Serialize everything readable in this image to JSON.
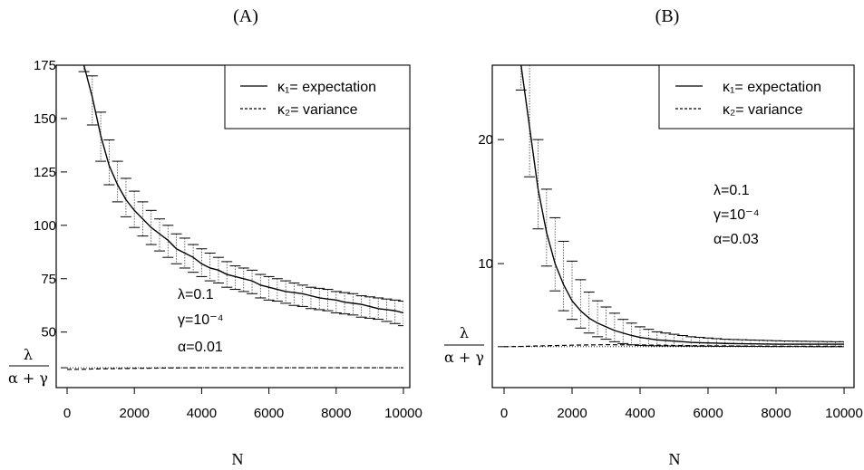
{
  "chart_data": [
    {
      "type": "line",
      "title": "(A)",
      "xlabel": "N",
      "ylabel": "",
      "xlim": [
        0,
        10000
      ],
      "ylim": [
        24,
        175
      ],
      "x_ticks": [
        "0",
        "2000",
        "4000",
        "6000",
        "8000",
        "10000"
      ],
      "y_ticks": [
        "50",
        "75",
        "100",
        "125",
        "150",
        "175"
      ],
      "y_extra_label": {
        "numerator": "λ",
        "denominator": "α + γ",
        "value": 33.3
      },
      "legend": {
        "placement": "top-right",
        "entries": [
          {
            "line": "solid",
            "label": "κ₁= expectation"
          },
          {
            "line": "dashed",
            "label": "κ₂= variance"
          }
        ]
      },
      "annotation": [
        "λ=0.1",
        "γ=10⁻⁴",
        "α=0.01"
      ],
      "series": [
        {
          "name": "κ₁= expectation",
          "line": "solid",
          "x": [
            500,
            750,
            1000,
            1250,
            1500,
            1750,
            2000,
            2250,
            2500,
            2750,
            3000,
            3250,
            3500,
            3750,
            4000,
            4250,
            4500,
            4750,
            5000,
            5250,
            5500,
            5750,
            6000,
            6250,
            6500,
            6750,
            7000,
            7250,
            7500,
            7750,
            8000,
            8250,
            8500,
            8750,
            9000,
            9250,
            9500,
            9750,
            10000
          ],
          "y": [
            175,
            160,
            142,
            128,
            119,
            112,
            107,
            103,
            99,
            96,
            93,
            89,
            87,
            85,
            82,
            80,
            79,
            77,
            76,
            75,
            74,
            72,
            71,
            70,
            69,
            68.5,
            68,
            67,
            66,
            65.5,
            65,
            64,
            63.5,
            63,
            62,
            61,
            60.5,
            60,
            59
          ],
          "err_upper": [
            185,
            170,
            153,
            140,
            130,
            122,
            116,
            111,
            107,
            103,
            100,
            96,
            94,
            91,
            89,
            87,
            85,
            83,
            81,
            80,
            79,
            77,
            76,
            75,
            74,
            73,
            72,
            71,
            70.5,
            70,
            69,
            68.5,
            68,
            67,
            66.5,
            66,
            65.5,
            65,
            64.5
          ],
          "err_lower": [
            172,
            147,
            130,
            119,
            111,
            104,
            99,
            95,
            91,
            88,
            85,
            82,
            80,
            78,
            76,
            74,
            73,
            71,
            70,
            69,
            68,
            66,
            65,
            64.5,
            63.5,
            62.5,
            62,
            61,
            60.5,
            60,
            59,
            58.5,
            58,
            57,
            56.5,
            56,
            55,
            54,
            53
          ]
        },
        {
          "name": "κ₂= variance",
          "line": "dashed",
          "x": [
            0,
            500,
            1000,
            2000,
            3000,
            4000,
            5000,
            6000,
            7000,
            8000,
            9000,
            10000
          ],
          "y": [
            32.5,
            32.6,
            32.8,
            33.0,
            33.2,
            33.3,
            33.3,
            33.3,
            33.3,
            33.3,
            33.3,
            33.3
          ]
        }
      ]
    },
    {
      "type": "line",
      "title": "(B)",
      "xlabel": "N",
      "ylabel": "",
      "xlim": [
        0,
        10000
      ],
      "ylim": [
        0,
        26
      ],
      "x_ticks": [
        "0",
        "2000",
        "4000",
        "6000",
        "8000",
        "10000"
      ],
      "y_ticks": [
        "10",
        "20"
      ],
      "y_extra_label": {
        "numerator": "λ",
        "denominator": "α + γ",
        "value": 3.3
      },
      "legend": {
        "placement": "top-right",
        "entries": [
          {
            "line": "solid",
            "label": "κ₁= expectation"
          },
          {
            "line": "dashed",
            "label": "κ₂= variance"
          }
        ]
      },
      "annotation": [
        "λ=0.1",
        "γ=10⁻⁴",
        "α=0.03"
      ],
      "series": [
        {
          "name": "κ₁= expectation",
          "line": "solid",
          "x": [
            500,
            750,
            1000,
            1250,
            1500,
            1750,
            2000,
            2250,
            2500,
            2750,
            3000,
            3250,
            3500,
            3750,
            4000,
            4250,
            4500,
            4750,
            5000,
            5250,
            5500,
            5750,
            6000,
            6250,
            6500,
            6750,
            7000,
            7250,
            7500,
            7750,
            8000,
            8250,
            8500,
            8750,
            9000,
            9250,
            9500,
            9750,
            10000
          ],
          "y": [
            26,
            21,
            16,
            12.5,
            10,
            8.3,
            7.0,
            6.2,
            5.6,
            5.2,
            4.9,
            4.6,
            4.4,
            4.2,
            4.05,
            3.95,
            3.85,
            3.8,
            3.75,
            3.7,
            3.65,
            3.62,
            3.6,
            3.58,
            3.56,
            3.55,
            3.54,
            3.53,
            3.52,
            3.51,
            3.5,
            3.5,
            3.5,
            3.5,
            3.5,
            3.5,
            3.5,
            3.5,
            3.5
          ],
          "err_upper": [
            26,
            26,
            20,
            16,
            13.7,
            11.8,
            10.2,
            8.7,
            7.7,
            7.0,
            6.5,
            6.0,
            5.5,
            5.2,
            4.9,
            4.7,
            4.5,
            4.4,
            4.3,
            4.2,
            4.1,
            4.05,
            4.0,
            3.95,
            3.9,
            3.88,
            3.86,
            3.84,
            3.82,
            3.8,
            3.78,
            3.76,
            3.75,
            3.74,
            3.73,
            3.72,
            3.71,
            3.7,
            3.7
          ],
          "err_lower": [
            24,
            17,
            12.8,
            9.8,
            7.8,
            6.2,
            5.5,
            4.8,
            4.4,
            4.1,
            3.9,
            3.7,
            3.55,
            3.45,
            3.4,
            3.38,
            3.37,
            3.36,
            3.36,
            3.35,
            3.35,
            3.34,
            3.34,
            3.33,
            3.33,
            3.33,
            3.32,
            3.32,
            3.32,
            3.31,
            3.31,
            3.31,
            3.31,
            3.31,
            3.3,
            3.3,
            3.3,
            3.3,
            3.3
          ]
        },
        {
          "name": "κ₂= variance",
          "line": "dashed",
          "x": [
            0,
            500,
            1000,
            2000,
            3000,
            4000,
            5000,
            6000,
            7000,
            8000,
            9000,
            10000
          ],
          "y": [
            3.3,
            3.32,
            3.36,
            3.42,
            3.46,
            3.44,
            3.4,
            3.37,
            3.35,
            3.34,
            3.33,
            3.33
          ]
        }
      ]
    }
  ]
}
